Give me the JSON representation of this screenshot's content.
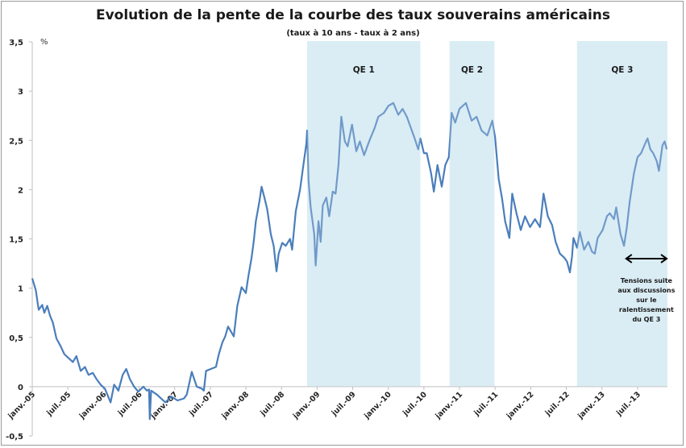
{
  "chart_data": {
    "type": "line",
    "title": "Evolution de la pente de la courbe des taux souverains américains",
    "subtitle": "(taux à 10 ans - taux à 2 ans)",
    "ylabel": "%",
    "xlabel": "",
    "ylim": [
      -0.5,
      3.5
    ],
    "xlim": [
      2005.0,
      2013.92
    ],
    "yticks": [
      {
        "value": 3.5,
        "label": "3,5"
      },
      {
        "value": 3,
        "label": "3"
      },
      {
        "value": 2.5,
        "label": "2,5"
      },
      {
        "value": 2,
        "label": "2"
      },
      {
        "value": 1.5,
        "label": "1,5"
      },
      {
        "value": 1,
        "label": "1"
      },
      {
        "value": 0.5,
        "label": "0,5"
      },
      {
        "value": 0,
        "label": "0"
      },
      {
        "value": -0.5,
        "label": "-0,5"
      }
    ],
    "xticks": [
      {
        "value": 2005.0,
        "label": "janv.-05"
      },
      {
        "value": 2005.5,
        "label": "juil.-05"
      },
      {
        "value": 2006.0,
        "label": "janv.-06"
      },
      {
        "value": 2006.5,
        "label": "juil.-06"
      },
      {
        "value": 2007.0,
        "label": "janv.-07"
      },
      {
        "value": 2007.5,
        "label": "juil.-07"
      },
      {
        "value": 2008.0,
        "label": "janv.-08"
      },
      {
        "value": 2008.5,
        "label": "juil.-08"
      },
      {
        "value": 2009.0,
        "label": "janv.-09"
      },
      {
        "value": 2009.5,
        "label": "juil.-09"
      },
      {
        "value": 2010.0,
        "label": "janv.-10"
      },
      {
        "value": 2010.5,
        "label": "juil.-10"
      },
      {
        "value": 2011.0,
        "label": "janv.-11"
      },
      {
        "value": 2011.5,
        "label": "juil.-11"
      },
      {
        "value": 2012.0,
        "label": "janv.-12"
      },
      {
        "value": 2012.5,
        "label": "juil.-12"
      },
      {
        "value": 2013.0,
        "label": "janv.-13"
      },
      {
        "value": 2013.5,
        "label": "juil.-13"
      }
    ],
    "grid": false,
    "legend": "none",
    "shaded_periods": [
      {
        "label": "QE 1",
        "start": 2008.86,
        "end": 2010.45
      },
      {
        "label": "QE 2",
        "start": 2010.86,
        "end": 2011.49
      },
      {
        "label": "QE 3",
        "start": 2012.65,
        "end": 2013.92
      }
    ],
    "annotation": {
      "arrow_start": 2013.34,
      "arrow_end": 2013.92,
      "arrow_value": 1.3,
      "lines": [
        "Tensions suite",
        "aux discussions",
        "sur le",
        "ralentissement",
        "du QE 3"
      ]
    },
    "colors": {
      "line": "#4a7ebb",
      "shade": "#d0e8f2",
      "axis": "#bfbfbf",
      "frame": "#9a9a9a"
    },
    "series": [
      {
        "name": "taux à 10 ans - taux à 2 ans",
        "x": [
          2005.0,
          2005.05,
          2005.09,
          2005.14,
          2005.17,
          2005.21,
          2005.25,
          2005.29,
          2005.34,
          2005.4,
          2005.45,
          2005.51,
          2005.57,
          2005.62,
          2005.68,
          2005.74,
          2005.79,
          2005.85,
          2005.9,
          2005.96,
          2006.02,
          2006.1,
          2006.15,
          2006.21,
          2006.27,
          2006.32,
          2006.37,
          2006.43,
          2006.49,
          2006.56,
          2006.61,
          2006.64,
          2006.65,
          2006.67,
          2006.75,
          2006.87,
          2006.95,
          2007.04,
          2007.13,
          2007.17,
          2007.24,
          2007.31,
          2007.38,
          2007.41,
          2007.44,
          2007.51,
          2007.58,
          2007.62,
          2007.67,
          2007.71,
          2007.75,
          2007.79,
          2007.83,
          2007.88,
          2007.94,
          2008.0,
          2008.03,
          2008.08,
          2008.11,
          2008.14,
          2008.19,
          2008.22,
          2008.26,
          2008.3,
          2008.35,
          2008.39,
          2008.43,
          2008.46,
          2008.51,
          2008.56,
          2008.62,
          2008.65,
          2008.7,
          2008.76,
          2008.8,
          2008.85,
          2008.86,
          2008.88,
          2008.91,
          2008.96,
          2008.98,
          2009.02,
          2009.05,
          2009.08,
          2009.13,
          2009.17,
          2009.22,
          2009.26,
          2009.3,
          2009.34,
          2009.39,
          2009.43,
          2009.49,
          2009.55,
          2009.6,
          2009.66,
          2009.73,
          2009.81,
          2009.86,
          2009.94,
          2010.0,
          2010.07,
          2010.14,
          2010.2,
          2010.26,
          2010.32,
          2010.37,
          2010.42,
          2010.45,
          2010.5,
          2010.54,
          2010.6,
          2010.64,
          2010.69,
          2010.75,
          2010.8,
          2010.85,
          2010.89,
          2010.94,
          2011.0,
          2011.09,
          2011.17,
          2011.24,
          2011.31,
          2011.39,
          2011.46,
          2011.5,
          2011.55,
          2011.6,
          2011.64,
          2011.7,
          2011.74,
          2011.8,
          2011.86,
          2011.92,
          2011.99,
          2012.06,
          2012.13,
          2012.18,
          2012.24,
          2012.3,
          2012.35,
          2012.41,
          2012.47,
          2012.51,
          2012.55,
          2012.58,
          2012.6,
          2012.65,
          2012.69,
          2012.75,
          2012.81,
          2012.86,
          2012.9,
          2012.94,
          2013.01,
          2013.07,
          2013.11,
          2013.17,
          2013.2,
          2013.26,
          2013.31,
          2013.35,
          2013.39,
          2013.45,
          2013.5,
          2013.55,
          2013.62,
          2013.64,
          2013.68,
          2013.72,
          2013.77,
          2013.8,
          2013.85,
          2013.88,
          2013.91
        ],
        "values": [
          1.1,
          0.98,
          0.78,
          0.83,
          0.75,
          0.82,
          0.72,
          0.65,
          0.49,
          0.41,
          0.33,
          0.29,
          0.25,
          0.31,
          0.16,
          0.2,
          0.12,
          0.14,
          0.08,
          0.02,
          -0.02,
          -0.16,
          0.02,
          -0.04,
          0.12,
          0.18,
          0.08,
          0.0,
          -0.05,
          0.0,
          -0.04,
          -0.03,
          -0.33,
          -0.04,
          -0.08,
          -0.16,
          -0.1,
          -0.14,
          -0.12,
          -0.08,
          0.15,
          0.0,
          -0.02,
          -0.04,
          0.16,
          0.18,
          0.2,
          0.33,
          0.45,
          0.51,
          0.61,
          0.56,
          0.51,
          0.82,
          1.01,
          0.95,
          1.1,
          1.31,
          1.47,
          1.68,
          1.88,
          2.03,
          1.92,
          1.8,
          1.55,
          1.43,
          1.17,
          1.35,
          1.46,
          1.43,
          1.5,
          1.39,
          1.78,
          2.0,
          2.21,
          2.47,
          2.6,
          2.09,
          1.82,
          1.55,
          1.23,
          1.68,
          1.47,
          1.84,
          1.92,
          1.73,
          1.98,
          1.96,
          2.25,
          2.74,
          2.49,
          2.44,
          2.66,
          2.39,
          2.49,
          2.35,
          2.49,
          2.63,
          2.74,
          2.78,
          2.85,
          2.88,
          2.76,
          2.82,
          2.74,
          2.62,
          2.52,
          2.41,
          2.52,
          2.37,
          2.37,
          2.17,
          1.98,
          2.25,
          2.03,
          2.25,
          2.33,
          2.78,
          2.68,
          2.82,
          2.88,
          2.7,
          2.74,
          2.6,
          2.55,
          2.7,
          2.53,
          2.11,
          1.9,
          1.68,
          1.51,
          1.96,
          1.76,
          1.59,
          1.73,
          1.62,
          1.7,
          1.62,
          1.96,
          1.73,
          1.64,
          1.47,
          1.35,
          1.31,
          1.27,
          1.16,
          1.32,
          1.51,
          1.41,
          1.57,
          1.39,
          1.47,
          1.37,
          1.35,
          1.51,
          1.59,
          1.73,
          1.76,
          1.7,
          1.82,
          1.55,
          1.43,
          1.62,
          1.88,
          2.17,
          2.33,
          2.37,
          2.49,
          2.52,
          2.41,
          2.37,
          2.29,
          2.19,
          2.45,
          2.49,
          2.41
        ]
      }
    ]
  }
}
